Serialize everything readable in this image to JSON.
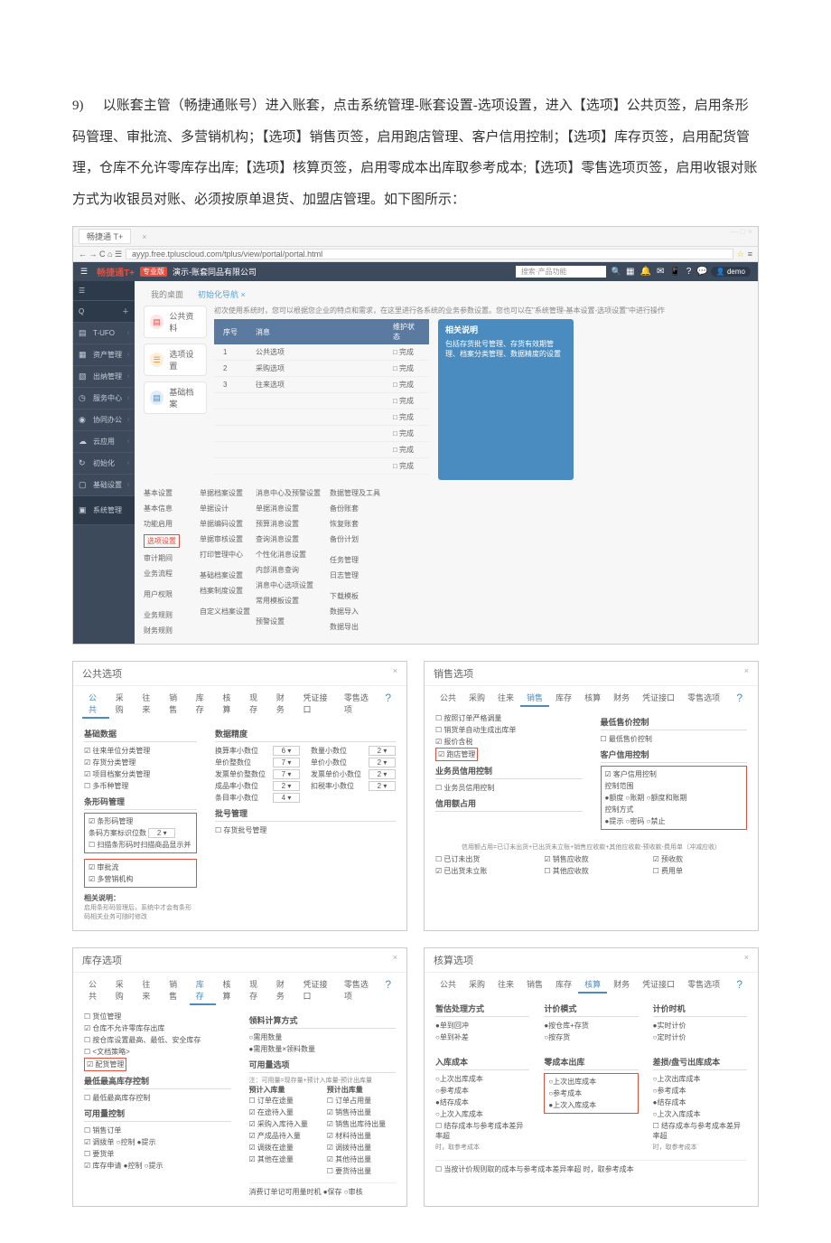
{
  "instruction": {
    "num": "9)",
    "text": "以账套主管（畅捷通账号）进入账套，点击系统管理-账套设置-选项设置，进入【选项】公共页签，启用条形码管理、审批流、多营销机构；【选项】销售页签，启用跑店管理、客户信用控制；【选项】库存页签，启用配货管理，仓库不允许零库存出库;【选项】核算页签，启用零成本出库取参考成本;【选项】零售选项页签，启用收银对账方式为收银员对账、必须按原单退货、加盟店管理。如下图所示："
  },
  "browser": {
    "tab": "畅捷通 T+",
    "url": "ayyp.free.tpluscloud.com/tplus/view/portal/portal.html",
    "winbtns": "— □ ×"
  },
  "topbar": {
    "logo_main": "畅捷通",
    "logo_t": "T+",
    "edition": "专业版",
    "company": "演示-账套同品有限公司",
    "search": "搜索·产品功能",
    "user": "demo"
  },
  "sidebar": [
    {
      "icon": "☰",
      "label": ""
    },
    {
      "icon": "Q",
      "label": "",
      "plus": "＋"
    },
    {
      "icon": "▤",
      "label": "T-UFO",
      "chev": "›"
    },
    {
      "icon": "▦",
      "label": "资产管理",
      "chev": "›"
    },
    {
      "icon": "▧",
      "label": "出纳管理",
      "chev": "›"
    },
    {
      "icon": "◷",
      "label": "服务中心",
      "chev": "›"
    },
    {
      "icon": "◉",
      "label": "协同办公",
      "chev": "›"
    },
    {
      "icon": "☁",
      "label": "云应用",
      "chev": "›"
    },
    {
      "icon": "↻",
      "label": "初始化",
      "chev": "›"
    },
    {
      "icon": "▢",
      "label": "基础设置",
      "chev": "›"
    },
    {
      "icon": "▣",
      "label": "系统管理"
    }
  ],
  "content_tabs": [
    "我的桌面",
    "初始化导航 ×"
  ],
  "cards": [
    {
      "cls": "c-pink",
      "label": "公共资料"
    },
    {
      "cls": "c-orange",
      "label": "选项设置"
    },
    {
      "cls": "c-blue",
      "label": "基础档案"
    }
  ],
  "note": "初次使用系统时，您可以根据您企业的特点和需求，在这里进行各系统的业务参数设置。您也可以在\"系统管理-基本设置-选项设置\"中进行操作",
  "minitable": {
    "headers": [
      "序号",
      "消息",
      "",
      "维护状态"
    ],
    "rows": [
      [
        "1",
        "公共选项",
        "",
        "□ 完成"
      ],
      [
        "2",
        "采购选项",
        "",
        "□ 完成"
      ],
      [
        "3",
        "往来选项",
        "",
        "□ 完成"
      ],
      [
        "",
        "",
        "",
        "□ 完成"
      ],
      [
        "",
        "",
        "",
        "□ 完成"
      ],
      [
        "",
        "",
        "",
        "□ 完成"
      ],
      [
        "",
        "",
        "",
        "□ 完成"
      ],
      [
        "",
        "",
        "",
        "□ 完成"
      ]
    ]
  },
  "helpbox": {
    "title": "相关说明",
    "text": "包括存货批号管理、存货有效期管理、档案分类管理、数据精度的设置"
  },
  "links": {
    "col1": [
      "基本设置",
      "基本信息",
      "功能启用",
      "<hl>选项设置</hl>",
      "审计期间",
      "业务流程",
      "",
      "用户权限",
      "",
      "业务规则",
      "财务规则"
    ],
    "col2": [
      "单据档案设置",
      "单据设计",
      "单据编码设置",
      "单据审核设置",
      "打印管理中心",
      "",
      "基础档案设置",
      "档案制度设置",
      "",
      "自定义档案设置"
    ],
    "col3": [
      "消息中心及预警设置",
      "单据消息设置",
      "预算消息设置",
      "查询消息设置",
      "个性化消息设置",
      "内部消息查询",
      "消息中心选项设置",
      "常用模板设置",
      "",
      "预警设置"
    ],
    "col4": [
      "数据管理及工具",
      "备份账套",
      "恢复账套",
      "备份计划",
      "",
      "任务管理",
      "日志管理",
      "",
      "下载模板",
      "数据导入",
      "数据导出"
    ]
  },
  "dlg_public": {
    "title": "公共选项",
    "tabs": [
      "公共",
      "采购",
      "往来",
      "销售",
      "库存",
      "核算",
      "现存",
      "财务",
      "凭证接口",
      "零售选项"
    ],
    "left_sec": "基础数据",
    "left_cb": [
      "☑ 往来单位分类管理",
      "☑ 存货分类管理",
      "☑ 项目档案分类管理",
      "☐ 多币种管理"
    ],
    "barcode_sec": "条形码管理",
    "barcode_cb": "☑ 条形码管理",
    "barcode_line1": "条码方案标识位数",
    "barcode_val": "2 ▾",
    "barcode_line2": "☐ 扫描条形码时扫描商品显示并",
    "approve_cb": "☑ 审批流",
    "multi_cb": "☑ 多营销机构",
    "note_title": "相关说明：",
    "note_body": "启用条形码管理后，系统中才会有条形码相关业务可随时修改",
    "right_sec": "数据精度",
    "precision": [
      [
        "换算率小数位",
        "6",
        "数量小数位",
        "2"
      ],
      [
        "单价整数位",
        "7",
        "单价小数位",
        "2"
      ],
      [
        "发票单价整数位",
        "7",
        "发票单价小数位",
        "2"
      ],
      [
        "成品率小数位",
        "2",
        "扣税率小数位",
        "2"
      ],
      [
        "条目率小数位",
        "4",
        "",
        ""
      ]
    ],
    "serial_title": "批号管理",
    "serial_cb": "☐ 存货批号管理"
  },
  "dlg_sales": {
    "title": "销售选项",
    "tabs": [
      "公共",
      "采购",
      "往来",
      "销售",
      "库存",
      "核算",
      "财务",
      "凭证接口",
      "零售选项"
    ],
    "left_cb": [
      "☐ 按照订单严格调量",
      "☐ 销货单自动生成出库单",
      "☑ 报价含税"
    ],
    "store_cb": "☑ 跑店管理",
    "sales_credit_title": "业务员信用控制",
    "sales_credit_cb": "☐ 业务员信用控制",
    "right_min_title": "最低售价控制",
    "right_min_cb": "☐ 最低售价控制",
    "cust_credit_title": "客户信用控制",
    "cust_credit_cb": "☑ 客户信用控制",
    "ctrl_range": "控制范围",
    "ctrl_range_opts": "●额度 ○账期 ○额度和账期",
    "ctrl_way": "控制方式",
    "ctrl_way_opts": "●提示 ○密码 ○禁止",
    "occupy_title": "信用额占用",
    "occupy_formula": "信用额占用=已订未出货+已出货未立账+销售应收款+其他应收款-预收款-费用单（冲减应收）",
    "occupy_cb1": [
      "☐ 已订未出货",
      "☑ 已出货未立账"
    ],
    "occupy_cb2": [
      "☑ 销售应收款",
      "☐ 其他应收款"
    ],
    "occupy_cb3": [
      "☑ 预收款",
      "☐ 费用单"
    ]
  },
  "dlg_inv": {
    "title": "库存选项",
    "tabs": [
      "公共",
      "采购",
      "往来",
      "销售",
      "库存",
      "核算",
      "现存",
      "财务",
      "凭证接口",
      "零售选项"
    ],
    "left_cb": [
      "☐ 货位管理",
      "☑ 仓库不允许零库存出库",
      "☐ 按仓库设置最高、最低、安全库存",
      "☐ &lt;文档策略&gt;"
    ],
    "dist_cb": "☑ 配货管理",
    "min_title": "最低最高库存控制",
    "min_cb": "☐ 最低最高库存控制",
    "avail_title": "可用量控制",
    "avail_cb": [
      "☐ 销售订单",
      "☑ 调拨单    ○控制 ●提示",
      "☐ 要货单",
      "☑ 库存申请    ●控制 ○提示"
    ],
    "calc_title": "领料计算方式",
    "calc_cb": [
      "○需用数量",
      "●需用数量×领料数量"
    ],
    "avail_choose": "可用量选项",
    "avail_note": "注：可用量=现存量+预计入库量-预计出库量",
    "avail_col_h": [
      "预计入库量",
      "预计出库量"
    ],
    "avail_rows_l": [
      "☐ 订单在途量",
      "☑ 在途待入量",
      "☑ 采购入库待入量",
      "☑ 产成品待入量",
      "☑ 调拨在途量",
      "☑ 其他在途量"
    ],
    "avail_rows_r": [
      "☐ 订单占用量",
      "☑ 销售待出量",
      "☑ 销售出库待出量",
      "☑ 材料待出量",
      "☑ 调拨待出量",
      "☑ 其他待出量",
      "☐ 要货待出量"
    ],
    "footer1": "消费订单记可用量时机 ●保存 ○审核"
  },
  "dlg_cost": {
    "title": "核算选项",
    "tabs": [
      "公共",
      "采购",
      "往来",
      "销售",
      "库存",
      "核算",
      "财务",
      "凭证接口",
      "零售选项"
    ],
    "acc_title": "暂估处理方式",
    "acc_opts": [
      "●单到回冲",
      "○单到补差"
    ],
    "calc_title": "计价模式",
    "calc_opts": [
      "●按仓库+存货",
      "○按存货"
    ],
    "time_title": "计价时机",
    "time_opts": [
      "●实时计价",
      "○定时计价"
    ],
    "in_title": "入库成本",
    "in_opts": [
      "○上次出库成本",
      "○参考成本",
      "●结存成本",
      "○上次入库成本",
      "☐ 结存成本与参考成本差异率超",
      "      时，取参考成本"
    ],
    "zero_title": "零成本出库",
    "zero_opts": [
      "○上次出库成本",
      "○参考成本",
      "●上次入库成本"
    ],
    "loss_title": "差损/盘亏出库成本",
    "loss_opts": [
      "○上次出库成本",
      "○参考成本",
      "●结存成本",
      "○上次入库成本",
      "☐ 结存成本与参考成本差异率超",
      "      时，取参考成本"
    ],
    "footer": "☐ 当按计价规则取的成本与参考成本差异率超            时，取参考成本"
  }
}
